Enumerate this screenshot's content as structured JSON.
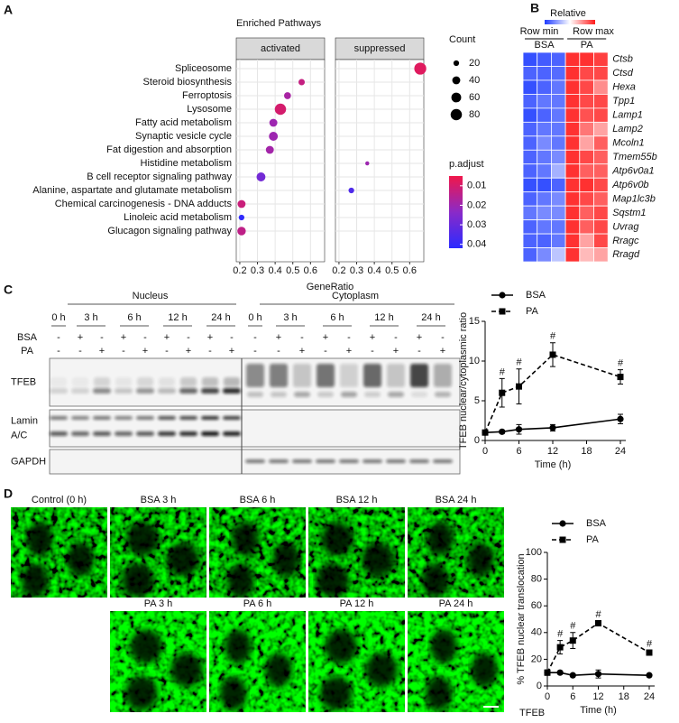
{
  "panel_labels": [
    "A",
    "B",
    "C",
    "D"
  ],
  "chart_data": [
    {
      "type": "dot",
      "title": "Enriched Pathways",
      "categories": [
        "Spliceosome",
        "Steroid biosynthesis",
        "Ferroptosis",
        "Lysosome",
        "Fatty acid metabolism",
        "Synaptic vesicle cycle",
        "Fat digestion and absorption",
        "Histidine metabolism",
        "B cell receptor signaling pathway",
        "Alanine, aspartate and glutamate metabolism",
        "Chemical carcinogenesis - DNA adducts",
        "Linoleic acid metabolism",
        "Glucagon signaling pathway"
      ],
      "facets": [
        {
          "name": "activated",
          "values": [
            null,
            0.55,
            0.47,
            0.43,
            0.39,
            0.39,
            0.37,
            null,
            0.32,
            null,
            0.21,
            0.21,
            0.21
          ],
          "counts": [
            null,
            25,
            30,
            80,
            40,
            50,
            40,
            null,
            50,
            null,
            40,
            20,
            45
          ],
          "p_adjust": [
            null,
            0.013,
            0.018,
            0.01,
            0.02,
            0.02,
            0.019,
            null,
            0.028,
            null,
            0.012,
            0.041,
            0.014
          ]
        },
        {
          "name": "suppressed",
          "values": [
            0.66,
            null,
            null,
            null,
            null,
            null,
            null,
            0.36,
            null,
            0.27,
            null,
            null,
            null
          ],
          "counts": [
            90,
            null,
            null,
            null,
            null,
            null,
            null,
            10,
            null,
            20,
            null,
            null,
            null
          ],
          "p_adjust": [
            0.008,
            null,
            null,
            null,
            null,
            null,
            null,
            0.02,
            null,
            0.035,
            null,
            null,
            null
          ]
        }
      ],
      "xlabel": "GeneRatio",
      "xlim": [
        0.18,
        0.68
      ],
      "xticks": [
        0.2,
        0.3,
        0.4,
        0.5,
        0.6
      ],
      "grid": true,
      "size_legend": {
        "title": "Count",
        "values": [
          20,
          40,
          60,
          80
        ]
      },
      "color_legend": {
        "title": "p.adjust",
        "lim": [
          0.005,
          0.042
        ],
        "ticks": [
          0.01,
          0.02,
          0.03,
          0.04
        ],
        "colors": [
          "#f0174a",
          "#8a2ac8",
          "#2b2bff"
        ]
      }
    },
    {
      "type": "heatmap",
      "title": "Relative",
      "min_label": "Row min",
      "max_label": "Row max",
      "groups": [
        "BSA",
        "PA"
      ],
      "colors": [
        "#1f3cff",
        "#ffffff",
        "#ff1a1a"
      ],
      "genes": [
        "Ctsb",
        "Ctsd",
        "Hexa",
        "Tpp1",
        "Lamp1",
        "Lamp2",
        "Mcoln1",
        "Tmem55b",
        "Atp6v0a1",
        "Atp6v0b",
        "Map1lc3b",
        "Sqstm1",
        "Uvrag",
        "Rragc",
        "Rragd"
      ],
      "values": [
        [
          0.05,
          0.08,
          0.1,
          0.95,
          0.95,
          0.92
        ],
        [
          0.1,
          0.1,
          0.12,
          0.95,
          0.9,
          0.9
        ],
        [
          0.05,
          0.1,
          0.15,
          0.95,
          0.9,
          0.75
        ],
        [
          0.1,
          0.15,
          0.15,
          0.95,
          0.9,
          0.9
        ],
        [
          0.05,
          0.1,
          0.15,
          0.95,
          0.88,
          0.9
        ],
        [
          0.1,
          0.15,
          0.15,
          0.95,
          0.8,
          0.7
        ],
        [
          0.1,
          0.2,
          0.15,
          0.95,
          0.7,
          0.85
        ],
        [
          0.1,
          0.15,
          0.2,
          0.95,
          0.9,
          0.85
        ],
        [
          0.1,
          0.15,
          0.3,
          0.95,
          0.85,
          0.85
        ],
        [
          0.05,
          0.05,
          0.1,
          0.95,
          0.95,
          0.9
        ],
        [
          0.1,
          0.15,
          0.2,
          0.95,
          0.9,
          0.85
        ],
        [
          0.15,
          0.2,
          0.2,
          0.95,
          0.85,
          0.9
        ],
        [
          0.1,
          0.15,
          0.15,
          0.95,
          0.85,
          0.9
        ],
        [
          0.1,
          0.1,
          0.15,
          0.95,
          0.7,
          0.9
        ],
        [
          0.1,
          0.2,
          0.35,
          0.95,
          0.65,
          0.7
        ]
      ]
    },
    {
      "type": "line",
      "ylabel": "TFEB nuclear/cytoplasmic ratio",
      "xlabel": "Time (h)",
      "x": [
        0,
        3,
        6,
        12,
        24
      ],
      "xlim": [
        0,
        24
      ],
      "xticks": [
        0,
        6,
        12,
        18,
        24
      ],
      "ylim": [
        0,
        15
      ],
      "yticks": [
        0,
        5,
        10,
        15
      ],
      "series": [
        {
          "name": "BSA",
          "color": "#000000",
          "marker": "circle",
          "dashed": false,
          "values": [
            1,
            1.1,
            1.4,
            1.6,
            2.7
          ],
          "errors": [
            0.1,
            0.2,
            0.6,
            0.4,
            0.6
          ]
        },
        {
          "name": "PA",
          "color": "#000000",
          "marker": "square",
          "dashed": true,
          "values": [
            1,
            6,
            6.8,
            10.8,
            8
          ],
          "errors": [
            0.2,
            1.8,
            2.2,
            1.5,
            0.9
          ],
          "significance": [
            null,
            "#",
            "#",
            "#",
            "#"
          ]
        }
      ]
    },
    {
      "type": "line",
      "ylabel": "% TFEB nuclear translocation",
      "xlabel": "Time (h)",
      "x": [
        0,
        3,
        6,
        12,
        24
      ],
      "xlim": [
        0,
        24
      ],
      "xticks": [
        0,
        6,
        12,
        18,
        24
      ],
      "ylim": [
        0,
        100
      ],
      "yticks": [
        0,
        20,
        40,
        60,
        80,
        100
      ],
      "series": [
        {
          "name": "BSA",
          "color": "#000000",
          "marker": "circle",
          "dashed": false,
          "values": [
            10,
            10,
            8,
            9,
            8
          ],
          "errors": [
            1,
            1,
            1,
            3,
            1
          ]
        },
        {
          "name": "PA",
          "color": "#000000",
          "marker": "square",
          "dashed": true,
          "values": [
            10,
            29,
            34,
            47,
            25
          ],
          "errors": [
            2,
            5,
            6,
            1.5,
            1.5
          ],
          "significance": [
            null,
            "#",
            "#",
            "#",
            "#"
          ]
        }
      ]
    }
  ],
  "blot": {
    "rows": [
      "BSA",
      "PA"
    ],
    "compartments": [
      {
        "name": "Nucleus",
        "times": [
          "0 h",
          "3 h",
          "6 h",
          "12 h",
          "24 h"
        ],
        "signs": [
          [
            "-",
            "+",
            "-",
            "+",
            "-",
            "+",
            "-",
            "+",
            "-"
          ],
          [
            "-",
            "-",
            "+",
            "-",
            "+",
            "-",
            "+",
            "-",
            "+"
          ]
        ]
      },
      {
        "name": "Cytoplasm",
        "times": [
          "0 h",
          "3 h",
          "6 h",
          "12 h",
          "24 h"
        ],
        "signs": [
          [
            "-",
            "+",
            "-",
            "+",
            "-",
            "+",
            "-",
            "+",
            "-"
          ],
          [
            "-",
            "-",
            "+",
            "-",
            "+",
            "-",
            "+",
            "-",
            "+"
          ]
        ]
      }
    ],
    "proteins": [
      [
        "TFEB"
      ],
      [
        "Lamin",
        "A/C"
      ],
      [
        "GAPDH"
      ]
    ]
  },
  "microscopy": {
    "panels": [
      "Control (0 h)",
      "BSA 3 h",
      "BSA 6 h",
      "BSA 12 h",
      "BSA 24 h",
      "PA 3 h",
      "PA 6 h",
      "PA 12 h",
      "PA 24 h"
    ],
    "stain": "TFEB"
  }
}
